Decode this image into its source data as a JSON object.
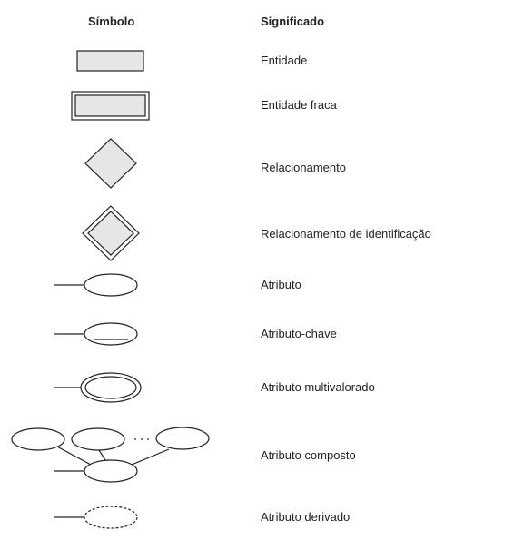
{
  "headers": {
    "symbol": "Símbolo",
    "meaning": "Significado"
  },
  "rows": [
    {
      "symbol_icon": "entity-rectangle-icon",
      "meaning": "Entidade"
    },
    {
      "symbol_icon": "weak-entity-double-rectangle-icon",
      "meaning": "Entidade fraca"
    },
    {
      "symbol_icon": "relationship-diamond-icon",
      "meaning": "Relacionamento"
    },
    {
      "symbol_icon": "identifying-relationship-double-diamond-icon",
      "meaning": "Relacionamento de identificação"
    },
    {
      "symbol_icon": "attribute-ellipse-icon",
      "meaning": "Atributo"
    },
    {
      "symbol_icon": "key-attribute-underlined-ellipse-icon",
      "meaning": "Atributo-chave"
    },
    {
      "symbol_icon": "multivalued-attribute-double-ellipse-icon",
      "meaning": "Atributo multivalorado"
    },
    {
      "symbol_icon": "composite-attribute-tree-icon",
      "meaning": "Atributo composto"
    },
    {
      "symbol_icon": "derived-attribute-dashed-ellipse-icon",
      "meaning": "Atributo derivado"
    }
  ],
  "colors": {
    "stroke": "#222222",
    "shape_fill": "#e6e6e6",
    "ellipse_fill": "#ffffff"
  }
}
